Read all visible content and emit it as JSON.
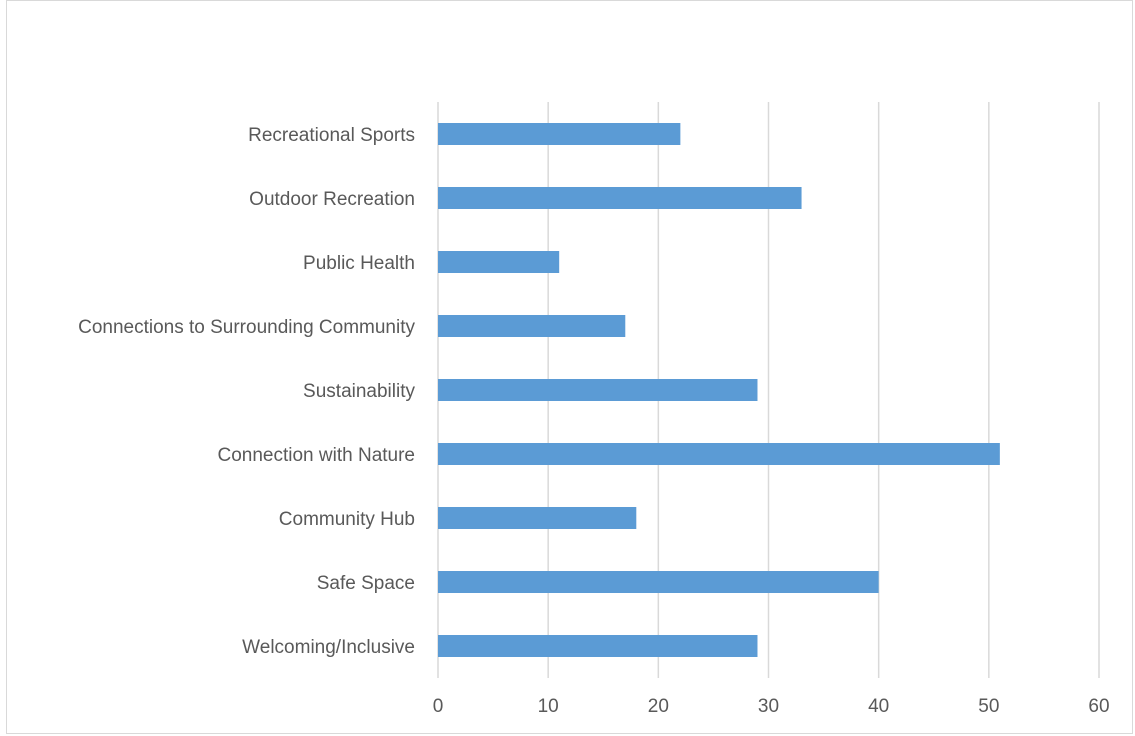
{
  "chart_data": {
    "type": "bar",
    "orientation": "horizontal",
    "categories": [
      "Recreational Sports",
      "Outdoor Recreation",
      "Public Health",
      "Connections to Surrounding Community",
      "Sustainability",
      "Connection with Nature",
      "Community Hub",
      "Safe Space",
      "Welcoming/Inclusive"
    ],
    "values": [
      22,
      33,
      11,
      17,
      29,
      51,
      18,
      40,
      29
    ],
    "xlim": [
      0,
      60
    ],
    "ticks": [
      "0",
      "10",
      "20",
      "30",
      "40",
      "50",
      "60"
    ],
    "grid": true,
    "legend": "none",
    "colors": {
      "bar": "#5b9bd5",
      "grid": "#d9d9d9",
      "text": "#595959"
    }
  }
}
